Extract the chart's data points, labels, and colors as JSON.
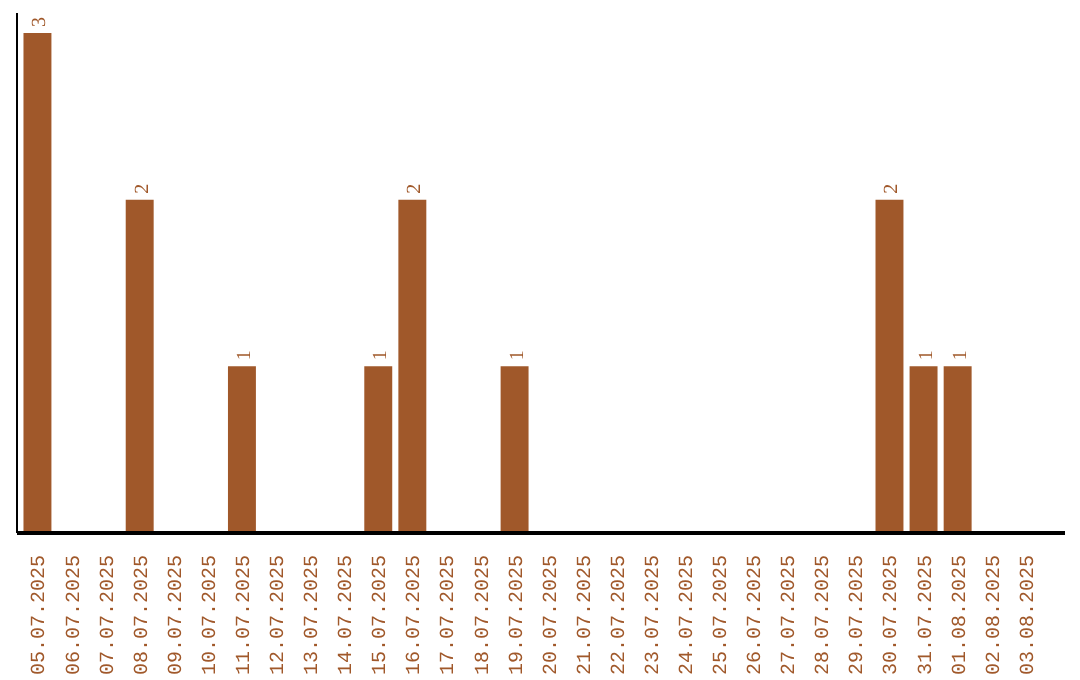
{
  "chart_data": {
    "type": "bar",
    "categories": [
      "05.07.2025",
      "06.07.2025",
      "07.07.2025",
      "08.07.2025",
      "09.07.2025",
      "10.07.2025",
      "11.07.2025",
      "12.07.2025",
      "13.07.2025",
      "14.07.2025",
      "15.07.2025",
      "16.07.2025",
      "17.07.2025",
      "18.07.2025",
      "19.07.2025",
      "20.07.2025",
      "21.07.2025",
      "22.07.2025",
      "23.07.2025",
      "24.07.2025",
      "25.07.2025",
      "26.07.2025",
      "27.07.2025",
      "28.07.2025",
      "29.07.2025",
      "30.07.2025",
      "31.07.2025",
      "01.08.2025",
      "02.08.2025",
      "03.08.2025"
    ],
    "values": [
      3,
      0,
      0,
      2,
      0,
      0,
      1,
      0,
      0,
      0,
      1,
      2,
      0,
      0,
      1,
      0,
      0,
      0,
      0,
      0,
      0,
      0,
      0,
      0,
      0,
      2,
      1,
      1,
      0,
      0
    ],
    "value_labels": [
      "3",
      null,
      null,
      "2",
      null,
      null,
      "1",
      null,
      null,
      null,
      "1",
      "2",
      null,
      null,
      "1",
      null,
      null,
      null,
      null,
      null,
      null,
      null,
      null,
      null,
      null,
      "2",
      "1",
      "1",
      null,
      null
    ],
    "color": "#a0582a",
    "tick_labels": "x",
    "grid": false
  }
}
